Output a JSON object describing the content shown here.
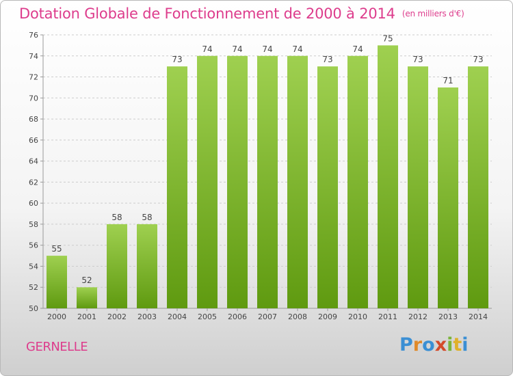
{
  "header": {
    "title": "Dotation Globale de Fonctionnement de 2000 à 2014",
    "subtitle": "(en milliers d'€)"
  },
  "footer": {
    "commune": "GERNELLE",
    "logo_letters": [
      "P",
      "r",
      "o",
      "x",
      "i",
      "t",
      "i"
    ],
    "logo_colors": [
      "#3b8fd4",
      "#e08a2a",
      "#3b8fd4",
      "#d44a2a",
      "#7ab43a",
      "#e0b02a",
      "#3b8fd4"
    ]
  },
  "colors": {
    "accent": "#dd3c8c",
    "bar_top": "#9fd050",
    "bar_bottom": "#5f9a10",
    "grid": "#cccccc"
  },
  "chart_data": {
    "type": "bar",
    "categories": [
      "2000",
      "2001",
      "2002",
      "2003",
      "2004",
      "2005",
      "2006",
      "2007",
      "2008",
      "2009",
      "2010",
      "2011",
      "2012",
      "2013",
      "2014"
    ],
    "values": [
      55,
      52,
      58,
      58,
      73,
      74,
      74,
      74,
      74,
      73,
      74,
      75,
      73,
      71,
      73
    ],
    "ylim": [
      50,
      76
    ],
    "yticks": [
      50,
      52,
      54,
      56,
      58,
      60,
      62,
      64,
      66,
      68,
      70,
      72,
      74,
      76
    ],
    "grid": true,
    "legend": "none"
  }
}
